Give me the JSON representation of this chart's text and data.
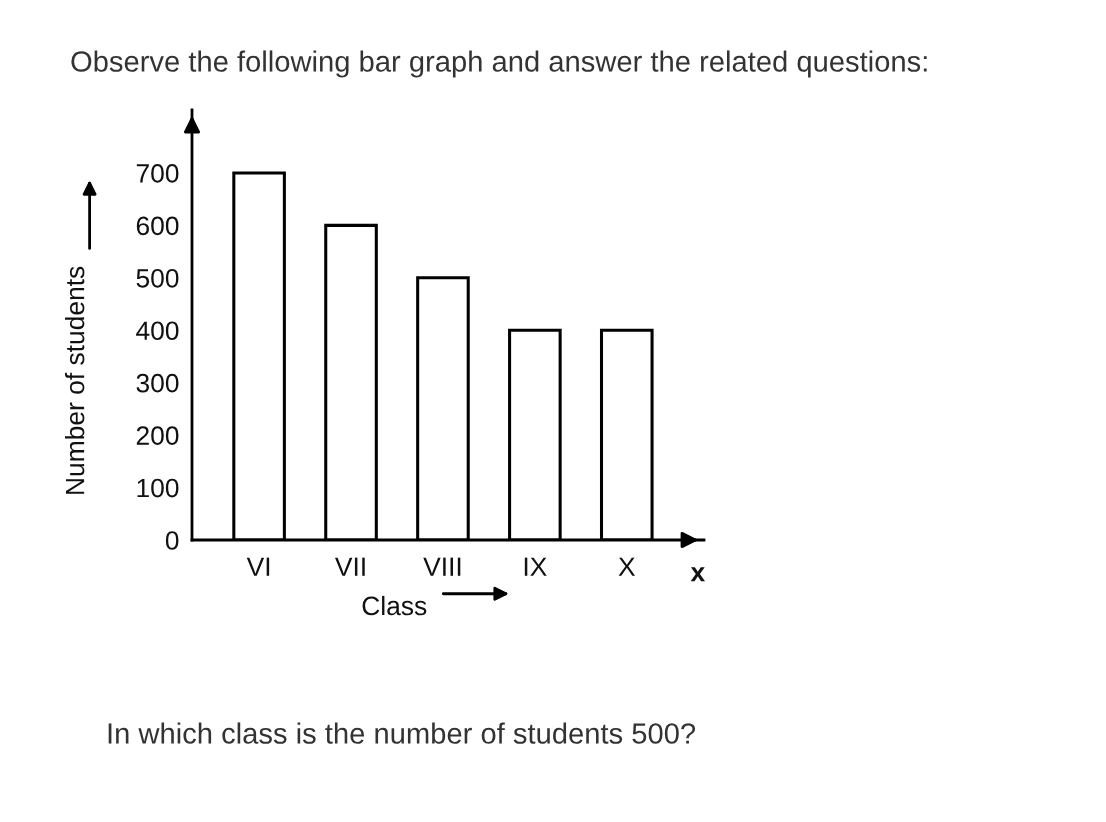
{
  "chart_data": {
    "type": "bar",
    "title": "Observe the following bar graph and answer the related questions:",
    "xlabel": "Class",
    "ylabel": "Number of students",
    "annotations": [
      "x",
      "In which class is the number of students 500?"
    ],
    "categories": [
      "VI",
      "VII",
      "VIII",
      "IX",
      "X"
    ],
    "values": [
      700,
      600,
      500,
      400,
      400
    ],
    "color": "#000000",
    "ylim": [
      0,
      820
    ],
    "yticks": [
      0,
      100,
      200,
      300,
      400,
      500,
      600,
      700
    ],
    "grid": false
  }
}
